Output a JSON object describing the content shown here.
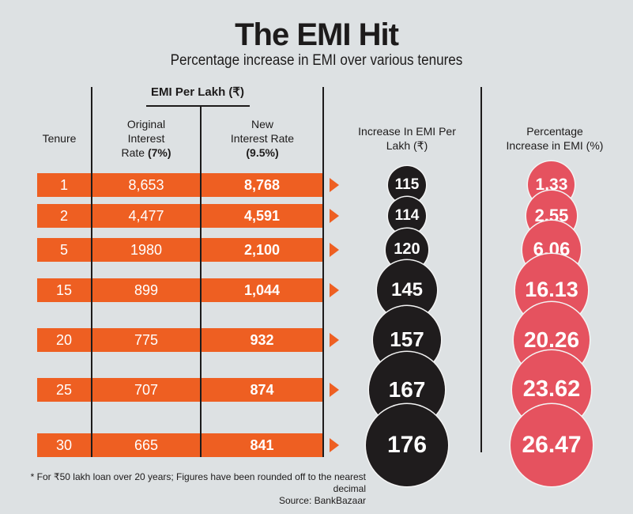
{
  "header": {
    "title": "The EMI Hit",
    "subtitle": "Percentage increase in EMI over various tenures"
  },
  "columns": {
    "tenure": "Tenure",
    "group": "EMI Per Lakh (₹)",
    "original_l1": "Original",
    "original_l2": "Interest",
    "original_l3a": "Rate ",
    "original_l3b": "(7%)",
    "new_l1": "New",
    "new_l2": "Interest Rate",
    "new_l3": "(9.5%)",
    "increase_l1": "Increase In EMI Per",
    "increase_l2": "Lakh (₹)",
    "pct_l1": "Percentage",
    "pct_l2": "Increase in EMI (%)"
  },
  "colors": {
    "background": "#dde1e3",
    "bar": "#ee5f22",
    "increase_circle": "#1f1c1d",
    "percent_circle": "#e5525f"
  },
  "chart_data": {
    "type": "table",
    "title": "The EMI Hit",
    "subtitle": "Percentage increase in EMI over various tenures",
    "columns": [
      "Tenure",
      "Original Interest Rate (7%)",
      "New Interest Rate (9.5%)",
      "Increase In EMI Per Lakh (₹)",
      "Percentage Increase in EMI (%)"
    ],
    "rows": [
      {
        "tenure": "1",
        "original": "8,653",
        "new": "8,768",
        "increase": "115",
        "percent": "1.33"
      },
      {
        "tenure": "2",
        "original": "4,477",
        "new": "4,591",
        "increase": "114",
        "percent": "2.55"
      },
      {
        "tenure": "5",
        "original": "1980",
        "new": "2,100",
        "increase": "120",
        "percent": "6.06"
      },
      {
        "tenure": "15",
        "original": "899",
        "new": "1,044",
        "increase": "145",
        "percent": "16.13"
      },
      {
        "tenure": "20",
        "original": "775",
        "new": "932",
        "increase": "157",
        "percent": "20.26"
      },
      {
        "tenure": "25",
        "original": "707",
        "new": "874",
        "increase": "167",
        "percent": "23.62"
      },
      {
        "tenure": "30",
        "original": "665",
        "new": "841",
        "increase": "176",
        "percent": "26.47"
      }
    ]
  },
  "footer": {
    "note": "* For ₹50 lakh loan over 20 years; Figures have been rounded off to the nearest decimal",
    "source": "Source: BankBazaar"
  }
}
